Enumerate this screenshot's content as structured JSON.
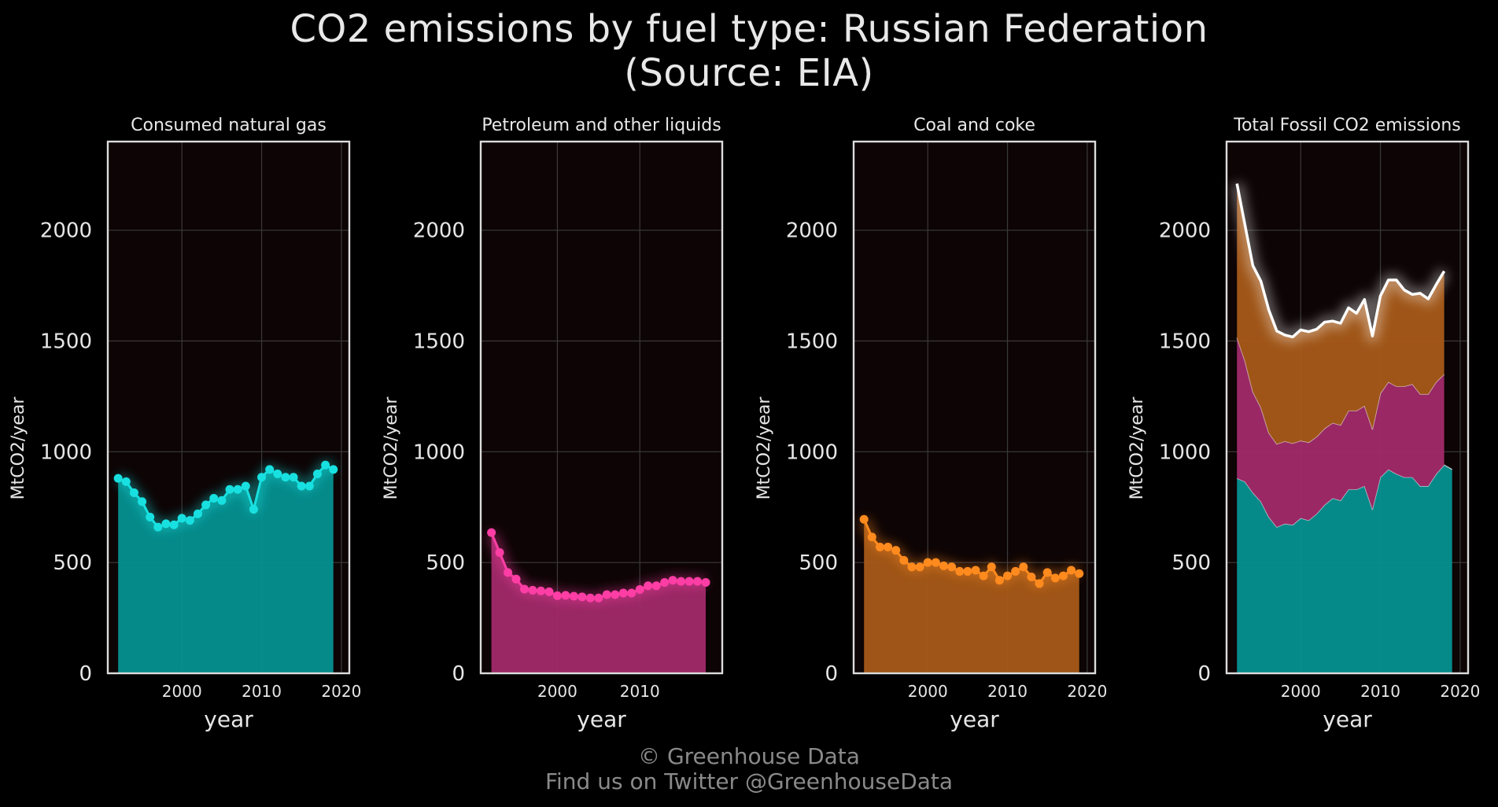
{
  "title": {
    "line1": "CO2 emissions by fuel type: Russian Federation",
    "line2": "(Source: EIA)"
  },
  "footer": {
    "line1": "© Greenhouse Data",
    "line2": "Find us on Twitter @GreenhouseData"
  },
  "colors": {
    "background": "#000000",
    "panel": "#0d0405",
    "gas": "#18e0e0",
    "gas_fill": "#069090",
    "petroleum": "#ff3ea5",
    "petroleum_fill": "#a22a6a",
    "coal": "#ff8a1e",
    "coal_fill": "#a85a18",
    "total": "#ffffff"
  },
  "chart_data": [
    {
      "type": "area",
      "title": "Consumed natural gas",
      "xlabel": "year",
      "ylabel": "MtCO2/year",
      "ylim": [
        0,
        2400
      ],
      "xlim": [
        1990.7,
        2021
      ],
      "xticks": [
        2000,
        2010,
        2020
      ],
      "yticks": [
        0,
        500,
        1000,
        1500,
        2000
      ],
      "grid": true,
      "color_key": "gas",
      "x": [
        1992,
        1993,
        1994,
        1995,
        1996,
        1997,
        1998,
        1999,
        2000,
        2001,
        2002,
        2003,
        2004,
        2005,
        2006,
        2007,
        2008,
        2009,
        2010,
        2011,
        2012,
        2013,
        2014,
        2015,
        2016,
        2017,
        2018,
        2019
      ],
      "values": [
        880,
        865,
        815,
        775,
        705,
        660,
        675,
        670,
        700,
        690,
        720,
        760,
        790,
        780,
        830,
        830,
        845,
        740,
        885,
        920,
        900,
        885,
        885,
        845,
        845,
        900,
        940,
        920
      ]
    },
    {
      "type": "area",
      "title": "Petroleum and other liquids",
      "xlabel": "year",
      "ylabel": "MtCO2/year",
      "ylim": [
        0,
        2400
      ],
      "xlim": [
        1990.7,
        2020
      ],
      "xticks": [
        2000,
        2010
      ],
      "yticks": [
        0,
        500,
        1000,
        1500,
        2000
      ],
      "grid": true,
      "color_key": "petroleum",
      "x": [
        1992,
        1993,
        1994,
        1995,
        1996,
        1997,
        1998,
        1999,
        2000,
        2001,
        2002,
        2003,
        2004,
        2005,
        2006,
        2007,
        2008,
        2009,
        2010,
        2011,
        2012,
        2013,
        2014,
        2015,
        2016,
        2017,
        2018
      ],
      "values": [
        635,
        545,
        455,
        425,
        380,
        375,
        372,
        368,
        350,
        352,
        348,
        345,
        340,
        340,
        355,
        355,
        362,
        362,
        378,
        395,
        395,
        410,
        420,
        415,
        415,
        415,
        410
      ]
    },
    {
      "type": "area",
      "title": "Coal and coke",
      "xlabel": "year",
      "ylabel": "MtCO2/year",
      "ylim": [
        0,
        2400
      ],
      "xlim": [
        1990.7,
        2021
      ],
      "xticks": [
        2000,
        2010,
        2020
      ],
      "yticks": [
        0,
        500,
        1000,
        1500,
        2000
      ],
      "grid": true,
      "color_key": "coal",
      "x": [
        1992,
        1993,
        1994,
        1995,
        1996,
        1997,
        1998,
        1999,
        2000,
        2001,
        2002,
        2003,
        2004,
        2005,
        2006,
        2007,
        2008,
        2009,
        2010,
        2011,
        2012,
        2013,
        2014,
        2015,
        2016,
        2017,
        2018,
        2019
      ],
      "values": [
        695,
        615,
        570,
        570,
        555,
        510,
        480,
        480,
        500,
        500,
        485,
        480,
        460,
        460,
        465,
        440,
        480,
        420,
        440,
        460,
        480,
        435,
        405,
        455,
        430,
        440,
        465,
        450
      ]
    },
    {
      "type": "area",
      "stacked": true,
      "title": "Total Fossil CO2 emissions",
      "xlabel": "year",
      "ylabel": "MtCO2/year",
      "ylim": [
        0,
        2400
      ],
      "xlim": [
        1990.7,
        2021
      ],
      "xticks": [
        2000,
        2010,
        2020
      ],
      "yticks": [
        0,
        500,
        1000,
        1500,
        2000
      ],
      "grid": true,
      "series": [
        {
          "color_key": "gas",
          "x": [
            1992,
            1993,
            1994,
            1995,
            1996,
            1997,
            1998,
            1999,
            2000,
            2001,
            2002,
            2003,
            2004,
            2005,
            2006,
            2007,
            2008,
            2009,
            2010,
            2011,
            2012,
            2013,
            2014,
            2015,
            2016,
            2017,
            2018,
            2019
          ],
          "values": [
            880,
            865,
            815,
            775,
            705,
            660,
            675,
            670,
            700,
            690,
            720,
            760,
            790,
            780,
            830,
            830,
            845,
            740,
            885,
            920,
            900,
            885,
            885,
            845,
            845,
            900,
            940,
            920
          ]
        },
        {
          "color_key": "petroleum",
          "x": [
            1992,
            1993,
            1994,
            1995,
            1996,
            1997,
            1998,
            1999,
            2000,
            2001,
            2002,
            2003,
            2004,
            2005,
            2006,
            2007,
            2008,
            2009,
            2010,
            2011,
            2012,
            2013,
            2014,
            2015,
            2016,
            2017,
            2018
          ],
          "values": [
            635,
            545,
            455,
            425,
            380,
            375,
            372,
            368,
            350,
            352,
            348,
            345,
            340,
            340,
            355,
            355,
            362,
            362,
            378,
            395,
            395,
            410,
            420,
            415,
            415,
            415,
            410
          ]
        },
        {
          "color_key": "coal",
          "x": [
            1992,
            1993,
            1994,
            1995,
            1996,
            1997,
            1998,
            1999,
            2000,
            2001,
            2002,
            2003,
            2004,
            2005,
            2006,
            2007,
            2008,
            2009,
            2010,
            2011,
            2012,
            2013,
            2014,
            2015,
            2016,
            2017,
            2018
          ],
          "values": [
            695,
            615,
            570,
            570,
            555,
            510,
            480,
            480,
            500,
            500,
            485,
            480,
            460,
            460,
            465,
            440,
            480,
            420,
            440,
            460,
            480,
            435,
            405,
            455,
            430,
            440,
            465
          ]
        }
      ],
      "total": {
        "color_key": "total",
        "x": [
          1992,
          1993,
          1994,
          1995,
          1996,
          1997,
          1998,
          1999,
          2000,
          2001,
          2002,
          2003,
          2004,
          2005,
          2006,
          2007,
          2008,
          2009,
          2010,
          2011,
          2012,
          2013,
          2014,
          2015,
          2016,
          2017,
          2018
        ],
        "values": [
          2210,
          2025,
          1840,
          1770,
          1640,
          1545,
          1527,
          1518,
          1550,
          1542,
          1553,
          1585,
          1590,
          1580,
          1650,
          1625,
          1687,
          1522,
          1703,
          1775,
          1775,
          1730,
          1710,
          1715,
          1690,
          1755,
          1815
        ]
      }
    }
  ]
}
